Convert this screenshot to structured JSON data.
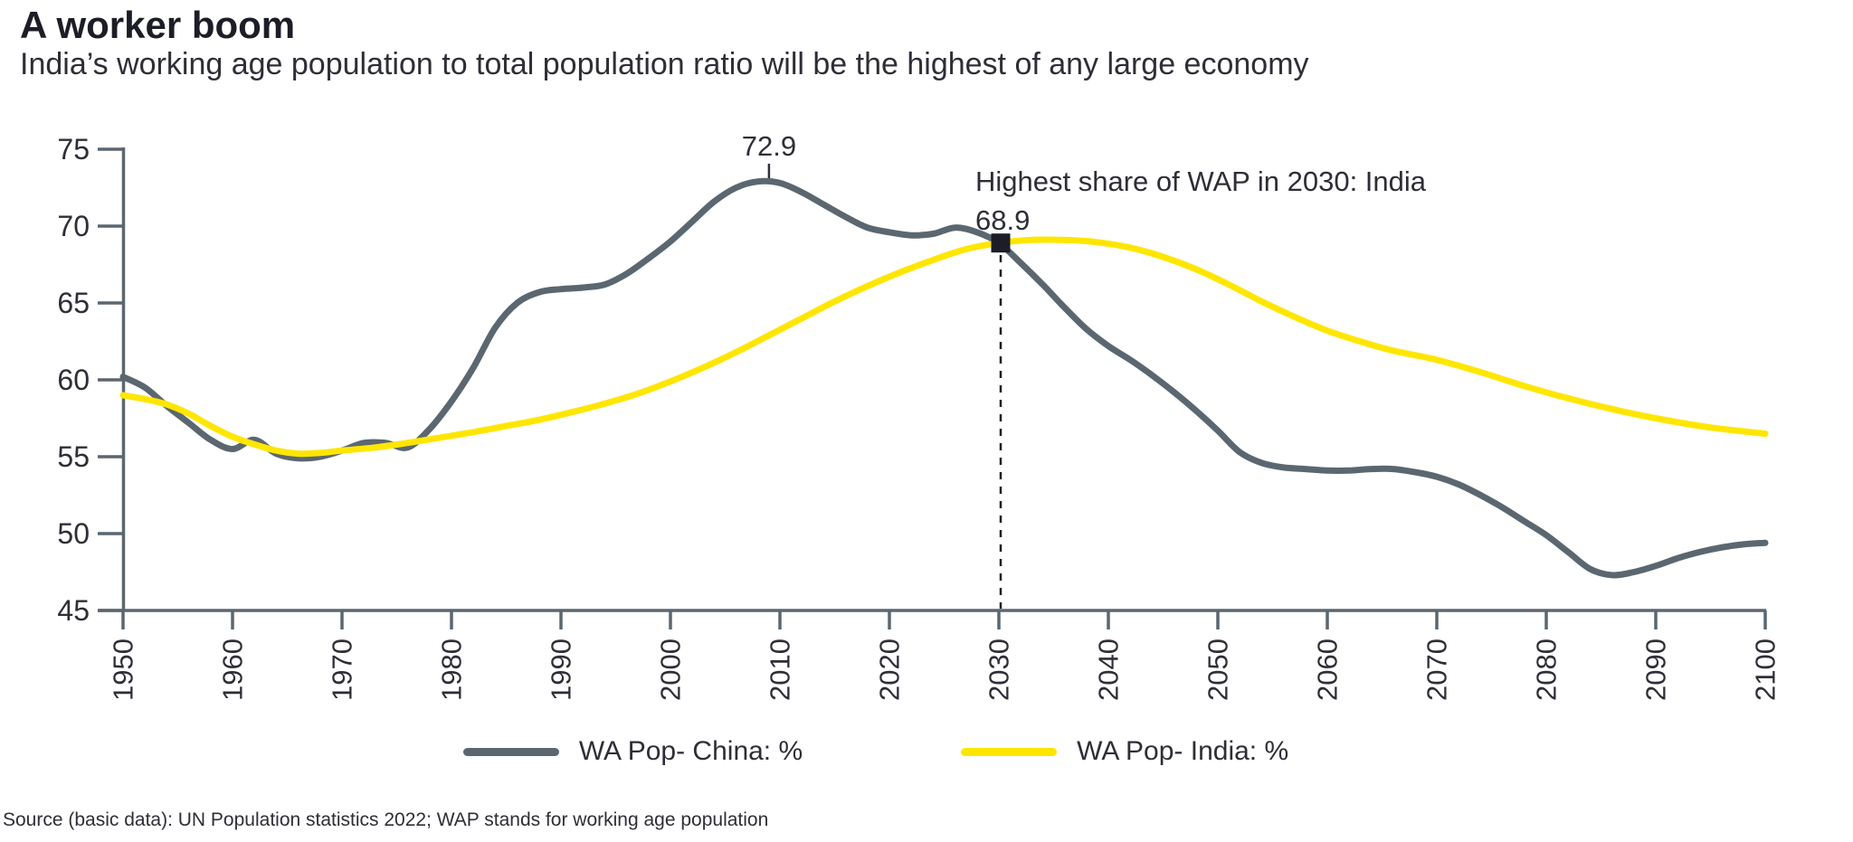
{
  "title": "A worker boom",
  "subtitle": "India’s working age population to total population ratio will be the highest of any large economy",
  "source_note": "Source (basic data): UN Population statistics 2022; WAP stands for working age population",
  "colors": {
    "china": "#5b6770",
    "india": "#ffe600",
    "axis": "#5b6770",
    "text": "#2e2e38",
    "marker": "#1d1d27"
  },
  "legend": {
    "items": [
      {
        "series_index": 0
      },
      {
        "series_index": 1
      }
    ]
  },
  "chart_data": {
    "type": "line",
    "xlabel": "",
    "ylabel": "",
    "xlim": [
      1950,
      2100
    ],
    "ylim": [
      45,
      75
    ],
    "grid": false,
    "legend_position": "bottom-center",
    "x_ticks": [
      1950,
      1960,
      1970,
      1980,
      1990,
      2000,
      2010,
      2020,
      2030,
      2040,
      2050,
      2060,
      2070,
      2080,
      2090,
      2100
    ],
    "y_ticks": [
      45,
      50,
      55,
      60,
      65,
      70,
      75
    ],
    "series": [
      {
        "name": "WA Pop- China: %",
        "color_key": "china",
        "points": [
          [
            1950,
            60.2
          ],
          [
            1952,
            59.5
          ],
          [
            1954,
            58.3
          ],
          [
            1956,
            57.2
          ],
          [
            1958,
            56.1
          ],
          [
            1960,
            55.5
          ],
          [
            1962,
            56.1
          ],
          [
            1964,
            55.2
          ],
          [
            1966,
            54.9
          ],
          [
            1968,
            55.0
          ],
          [
            1970,
            55.4
          ],
          [
            1972,
            55.9
          ],
          [
            1974,
            55.9
          ],
          [
            1976,
            55.6
          ],
          [
            1978,
            56.8
          ],
          [
            1980,
            58.6
          ],
          [
            1982,
            60.8
          ],
          [
            1984,
            63.4
          ],
          [
            1986,
            65.0
          ],
          [
            1988,
            65.7
          ],
          [
            1990,
            65.9
          ],
          [
            1992,
            66.0
          ],
          [
            1994,
            66.2
          ],
          [
            1996,
            66.9
          ],
          [
            1998,
            67.9
          ],
          [
            2000,
            69.0
          ],
          [
            2002,
            70.3
          ],
          [
            2004,
            71.6
          ],
          [
            2006,
            72.5
          ],
          [
            2008,
            72.9
          ],
          [
            2010,
            72.8
          ],
          [
            2012,
            72.2
          ],
          [
            2014,
            71.4
          ],
          [
            2016,
            70.6
          ],
          [
            2018,
            69.9
          ],
          [
            2020,
            69.6
          ],
          [
            2022,
            69.4
          ],
          [
            2024,
            69.5
          ],
          [
            2026,
            69.9
          ],
          [
            2028,
            69.6
          ],
          [
            2030,
            68.9
          ],
          [
            2032,
            67.6
          ],
          [
            2034,
            66.2
          ],
          [
            2036,
            64.7
          ],
          [
            2038,
            63.3
          ],
          [
            2040,
            62.2
          ],
          [
            2042,
            61.3
          ],
          [
            2044,
            60.3
          ],
          [
            2046,
            59.2
          ],
          [
            2048,
            58.0
          ],
          [
            2050,
            56.7
          ],
          [
            2052,
            55.3
          ],
          [
            2054,
            54.6
          ],
          [
            2056,
            54.3
          ],
          [
            2058,
            54.2
          ],
          [
            2060,
            54.1
          ],
          [
            2062,
            54.1
          ],
          [
            2064,
            54.2
          ],
          [
            2066,
            54.2
          ],
          [
            2068,
            54.0
          ],
          [
            2070,
            53.7
          ],
          [
            2072,
            53.2
          ],
          [
            2074,
            52.5
          ],
          [
            2076,
            51.7
          ],
          [
            2078,
            50.8
          ],
          [
            2080,
            49.9
          ],
          [
            2082,
            48.8
          ],
          [
            2084,
            47.7
          ],
          [
            2086,
            47.3
          ],
          [
            2088,
            47.5
          ],
          [
            2090,
            47.9
          ],
          [
            2092,
            48.4
          ],
          [
            2094,
            48.8
          ],
          [
            2096,
            49.1
          ],
          [
            2098,
            49.3
          ],
          [
            2100,
            49.4
          ]
        ]
      },
      {
        "name": "WA Pop- India: %",
        "color_key": "india",
        "points": [
          [
            1950,
            59.0
          ],
          [
            1952,
            58.75
          ],
          [
            1954,
            58.4
          ],
          [
            1956,
            57.8
          ],
          [
            1958,
            57.0
          ],
          [
            1960,
            56.3
          ],
          [
            1962,
            55.8
          ],
          [
            1964,
            55.4
          ],
          [
            1966,
            55.2
          ],
          [
            1968,
            55.25
          ],
          [
            1970,
            55.4
          ],
          [
            1973,
            55.6
          ],
          [
            1976,
            55.9
          ],
          [
            1979,
            56.25
          ],
          [
            1982,
            56.6
          ],
          [
            1985,
            57.0
          ],
          [
            1988,
            57.4
          ],
          [
            1991,
            57.9
          ],
          [
            1994,
            58.45
          ],
          [
            1997,
            59.1
          ],
          [
            2000,
            59.9
          ],
          [
            2003,
            60.8
          ],
          [
            2006,
            61.8
          ],
          [
            2009,
            62.9
          ],
          [
            2012,
            64.0
          ],
          [
            2015,
            65.1
          ],
          [
            2018,
            66.1
          ],
          [
            2021,
            67.0
          ],
          [
            2024,
            67.8
          ],
          [
            2027,
            68.5
          ],
          [
            2030,
            68.9
          ],
          [
            2033,
            69.1
          ],
          [
            2036,
            69.1
          ],
          [
            2039,
            68.95
          ],
          [
            2042,
            68.6
          ],
          [
            2045,
            68.0
          ],
          [
            2048,
            67.2
          ],
          [
            2051,
            66.2
          ],
          [
            2054,
            65.1
          ],
          [
            2057,
            64.1
          ],
          [
            2060,
            63.2
          ],
          [
            2063,
            62.5
          ],
          [
            2066,
            61.9
          ],
          [
            2070,
            61.3
          ],
          [
            2074,
            60.5
          ],
          [
            2078,
            59.6
          ],
          [
            2082,
            58.8
          ],
          [
            2086,
            58.1
          ],
          [
            2090,
            57.5
          ],
          [
            2095,
            56.9
          ],
          [
            2100,
            56.5
          ]
        ]
      }
    ],
    "annotations": [
      {
        "id": "china-peak",
        "type": "value-label",
        "text": "72.9",
        "anchor_year": 2009,
        "anchor_value": 72.9
      },
      {
        "id": "india-2030",
        "type": "marker-callout",
        "line1": "Highest share of WAP in 2030: India",
        "line2": "68.9",
        "anchor_year": 2030,
        "anchor_value": 68.9
      }
    ]
  }
}
